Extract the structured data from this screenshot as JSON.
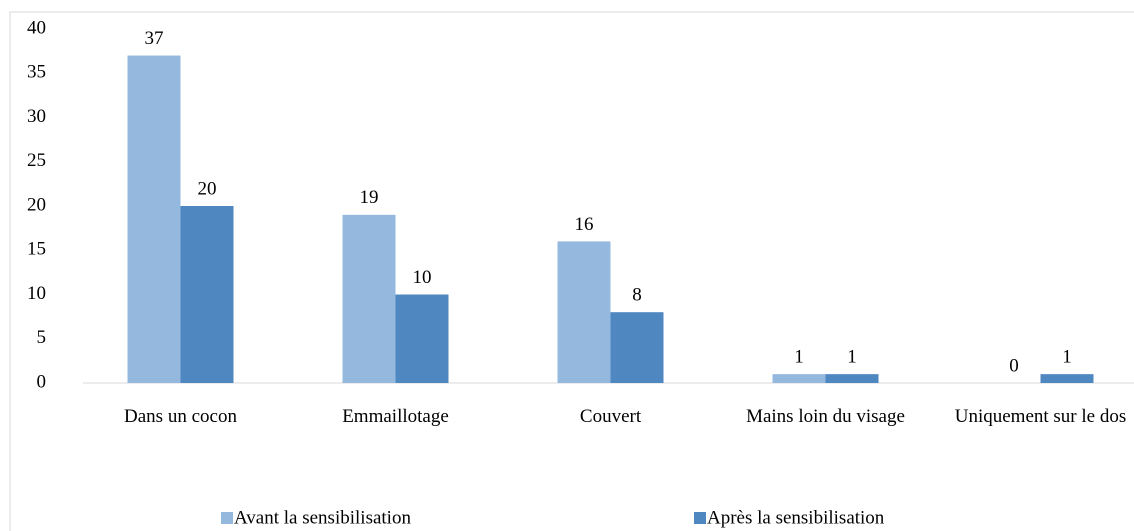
{
  "chart_data": {
    "type": "bar",
    "categories": [
      "Dans un cocon",
      "Emmaillotage",
      "Couvert",
      "Mains loin du visage",
      "Uniquement sur le dos"
    ],
    "series": [
      {
        "name": "Avant la sensibilisation",
        "color": "#95b8df",
        "values": [
          37,
          19,
          16,
          1,
          0
        ]
      },
      {
        "name": "Après la sensibilisation",
        "color": "#4f87c0",
        "values": [
          20,
          10,
          8,
          1,
          1
        ]
      }
    ],
    "ylim": [
      0,
      40
    ],
    "yticks": [
      0,
      5,
      10,
      15,
      20,
      25,
      30,
      35,
      40
    ],
    "grid": false,
    "legend": "bottom"
  }
}
